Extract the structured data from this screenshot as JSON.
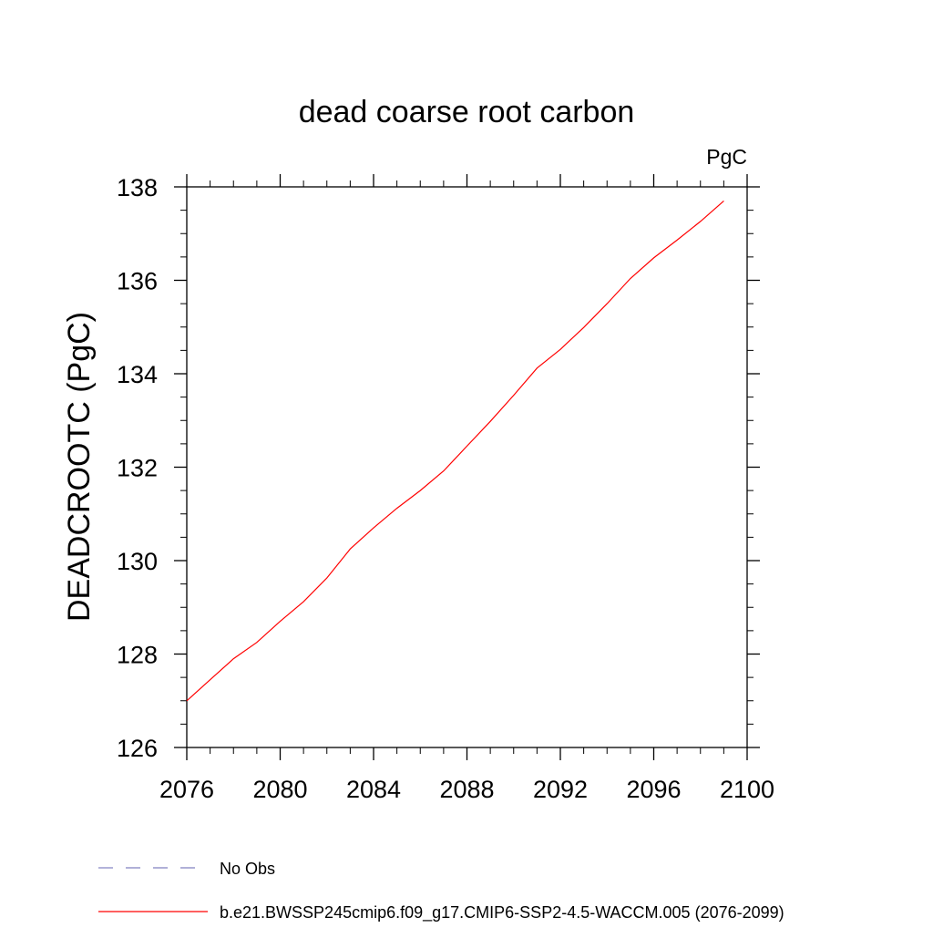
{
  "chart_data": {
    "type": "line",
    "title": "dead coarse root carbon",
    "units": "PgC",
    "ylabel": "DEADCROOTC  (PgC)",
    "xlabel": "",
    "xlim": [
      2076,
      2100
    ],
    "ylim": [
      126,
      138
    ],
    "x_ticks": [
      2076,
      2080,
      2084,
      2088,
      2092,
      2096,
      2100
    ],
    "x_tick_labels": [
      "2076",
      "2080",
      "2084",
      "2088",
      "2092",
      "2096",
      "2100"
    ],
    "y_ticks": [
      126,
      128,
      130,
      132,
      134,
      136,
      138
    ],
    "y_tick_labels": [
      "126",
      "128",
      "130",
      "132",
      "134",
      "136",
      "138"
    ],
    "grid": false,
    "legend_position": "bottom",
    "series": [
      {
        "name": "b.e21.BWSSP245cmip6.f09_g17.CMIP6-SSP2-4.5-WACCM.005 (2076-2099)",
        "color": "#ff0000",
        "style": "solid",
        "x": [
          2076,
          2077,
          2078,
          2079,
          2080,
          2081,
          2082,
          2083,
          2084,
          2085,
          2086,
          2087,
          2088,
          2089,
          2090,
          2091,
          2092,
          2093,
          2094,
          2095,
          2096,
          2097,
          2098,
          2099
        ],
        "values": [
          127.0,
          127.45,
          127.9,
          128.25,
          128.7,
          129.12,
          129.63,
          130.25,
          130.7,
          131.12,
          131.5,
          131.92,
          132.45,
          132.98,
          133.54,
          134.12,
          134.52,
          134.99,
          135.5,
          136.04,
          136.48,
          136.86,
          137.26,
          137.7
        ]
      }
    ],
    "legend": [
      {
        "label": "No Obs",
        "color": "#8080c0",
        "style": "dashed"
      },
      {
        "label": "b.e21.BWSSP245cmip6.f09_g17.CMIP6-SSP2-4.5-WACCM.005 (2076-2099)",
        "color": "#ff0000",
        "style": "solid"
      }
    ]
  }
}
